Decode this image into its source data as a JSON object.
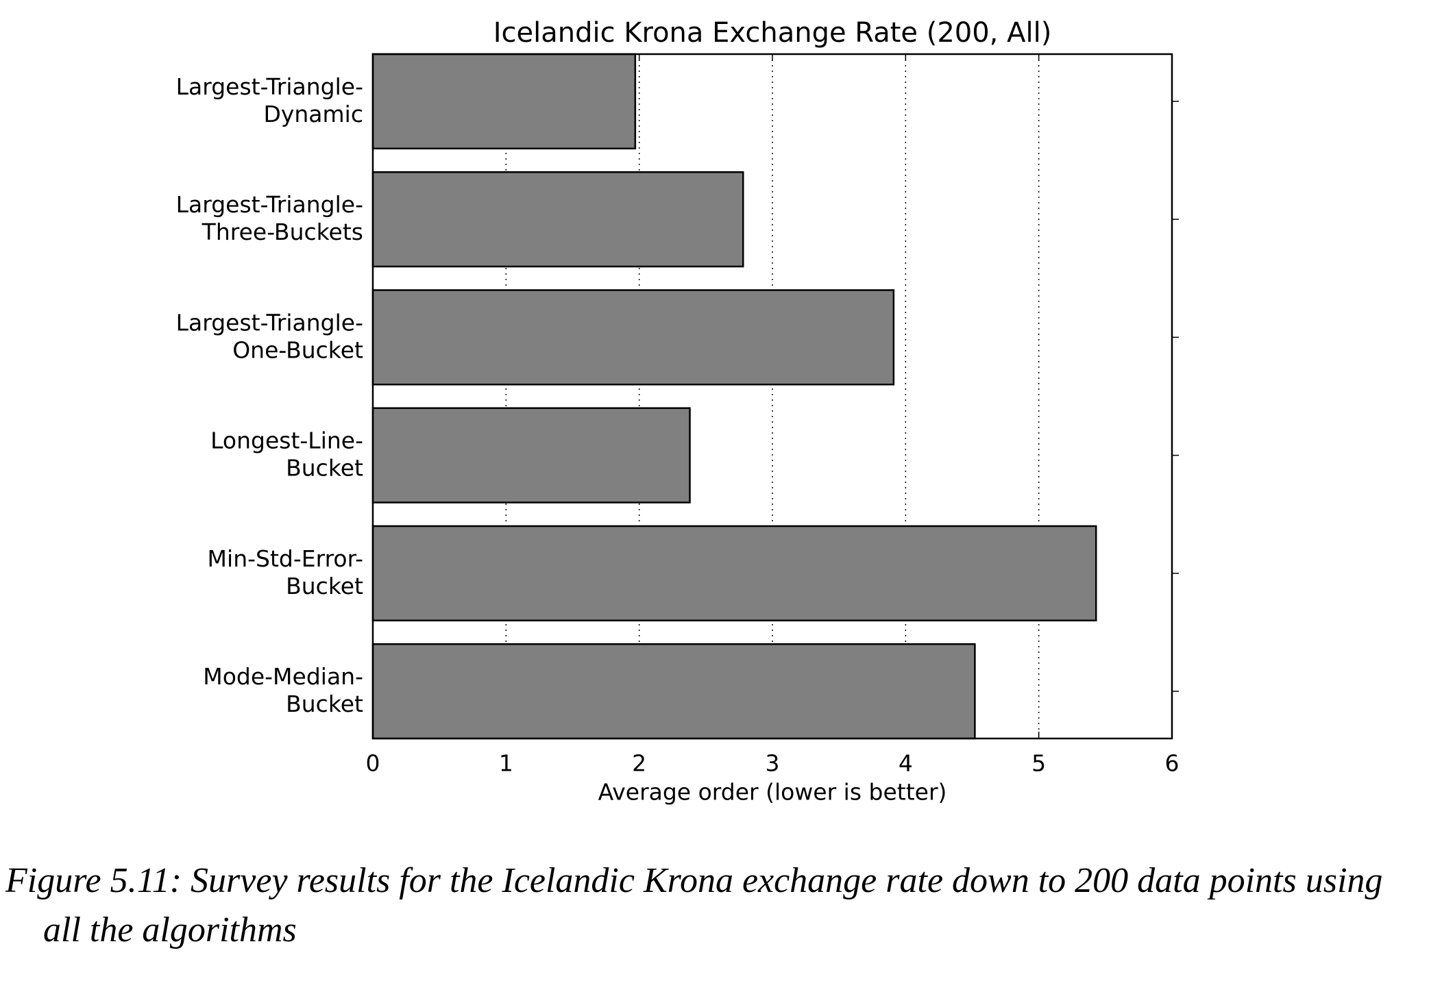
{
  "chart_data": {
    "type": "barh",
    "title": "Icelandic Krona Exchange Rate (200, All)",
    "categories": [
      "Largest-Triangle-\nDynamic",
      "Largest-Triangle-\nThree-Buckets",
      "Largest-Triangle-\nOne-Bucket",
      "Longest-Line-\nBucket",
      "Min-Std-Error-\nBucket",
      "Mode-Median-\nBucket"
    ],
    "values": [
      1.97,
      2.78,
      3.91,
      2.38,
      5.43,
      4.52
    ],
    "color": "#808080",
    "xlabel": "Average order (lower is better)",
    "xlim": [
      0,
      6
    ],
    "xticks": [
      0,
      1,
      2,
      3,
      4,
      5,
      6
    ],
    "grid": true
  },
  "caption": "Figure 5.11: Survey results for the Icelandic Krona exchange rate down to 200 data points using all the algorithms"
}
